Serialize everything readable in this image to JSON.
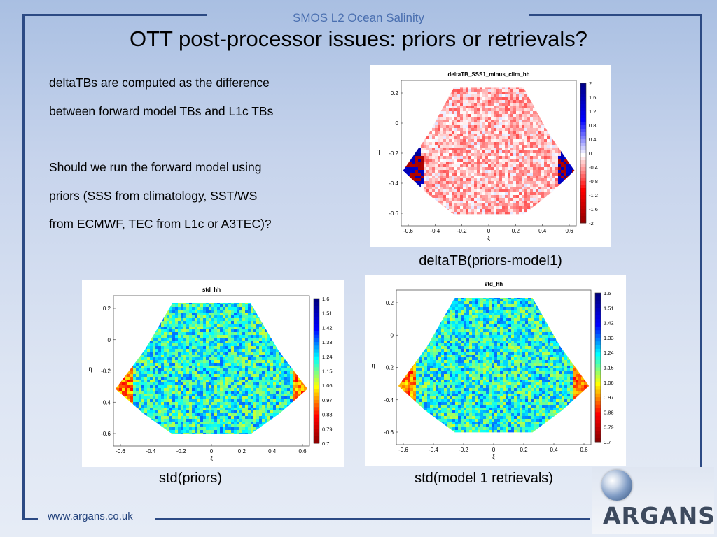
{
  "header": {
    "brand": "SMOS L2 Ocean Salinity",
    "title": "OTT post-processor issues: priors or retrievals?"
  },
  "body": {
    "para1_line1": "deltaTBs are computed as the difference",
    "para1_line2": "between forward model TBs and L1c TBs",
    "para2_line1": "Should we run the forward model using",
    "para2_line2": "priors (SSS from climatology, SST/WS",
    "para2_line3": "from ECMWF, TEC from L1c or A3TEC)?"
  },
  "plots": {
    "delta": {
      "plot_title": "deltaTB_SSS1_minus_clim_hh",
      "caption": "deltaTB(priors-model1)",
      "x_ticks": [
        "-0.6",
        "-0.4",
        "-0.2",
        "0",
        "0.2",
        "0.4",
        "0.6"
      ],
      "y_ticks": [
        "0.2",
        "0",
        "-0.2",
        "-0.4",
        "-0.6"
      ],
      "x_label": "ξ",
      "y_label": "η",
      "colorbar_ticks": [
        "2",
        "1.6",
        "1.2",
        "0.8",
        "0.4",
        "0",
        "-0.4",
        "-0.8",
        "-1.2",
        "-1.6",
        "-2"
      ],
      "colormap": [
        "#8b0000",
        "#ff0000",
        "#ffffff",
        "#0000ff",
        "#00008b"
      ]
    },
    "std_priors": {
      "plot_title": "std_hh",
      "caption": "std(priors)",
      "x_ticks": [
        "-0.6",
        "-0.4",
        "-0.2",
        "0",
        "0.2",
        "0.4",
        "0.6"
      ],
      "y_ticks": [
        "0.2",
        "0",
        "-0.2",
        "-0.4",
        "-0.6"
      ],
      "x_label": "ξ",
      "y_label": "η",
      "colorbar_ticks": [
        "1.6",
        "1.51",
        "1.42",
        "1.33",
        "1.24",
        "1.15",
        "1.06",
        "0.97",
        "0.88",
        "0.79",
        "0.7"
      ],
      "colormap": [
        "#7f0000",
        "#ff0000",
        "#ffff00",
        "#00ffff",
        "#0000ff",
        "#00007f"
      ]
    },
    "std_model": {
      "plot_title": "std_hh",
      "caption": "std(model 1 retrievals)",
      "x_ticks": [
        "-0.6",
        "-0.4",
        "-0.2",
        "0",
        "0.2",
        "0.4",
        "0.6"
      ],
      "y_ticks": [
        "0.2",
        "0",
        "-0.2",
        "-0.4",
        "-0.6"
      ],
      "x_label": "ξ",
      "y_label": "η",
      "colorbar_ticks": [
        "1.6",
        "1.51",
        "1.42",
        "1.33",
        "1.24",
        "1.15",
        "1.06",
        "0.97",
        "0.88",
        "0.79",
        "0.7"
      ],
      "colormap": [
        "#7f0000",
        "#ff0000",
        "#ffff00",
        "#00ffff",
        "#0000ff",
        "#00007f"
      ]
    }
  },
  "footer": {
    "url": "www.argans.co.uk",
    "logo_text": "ARGANS"
  }
}
